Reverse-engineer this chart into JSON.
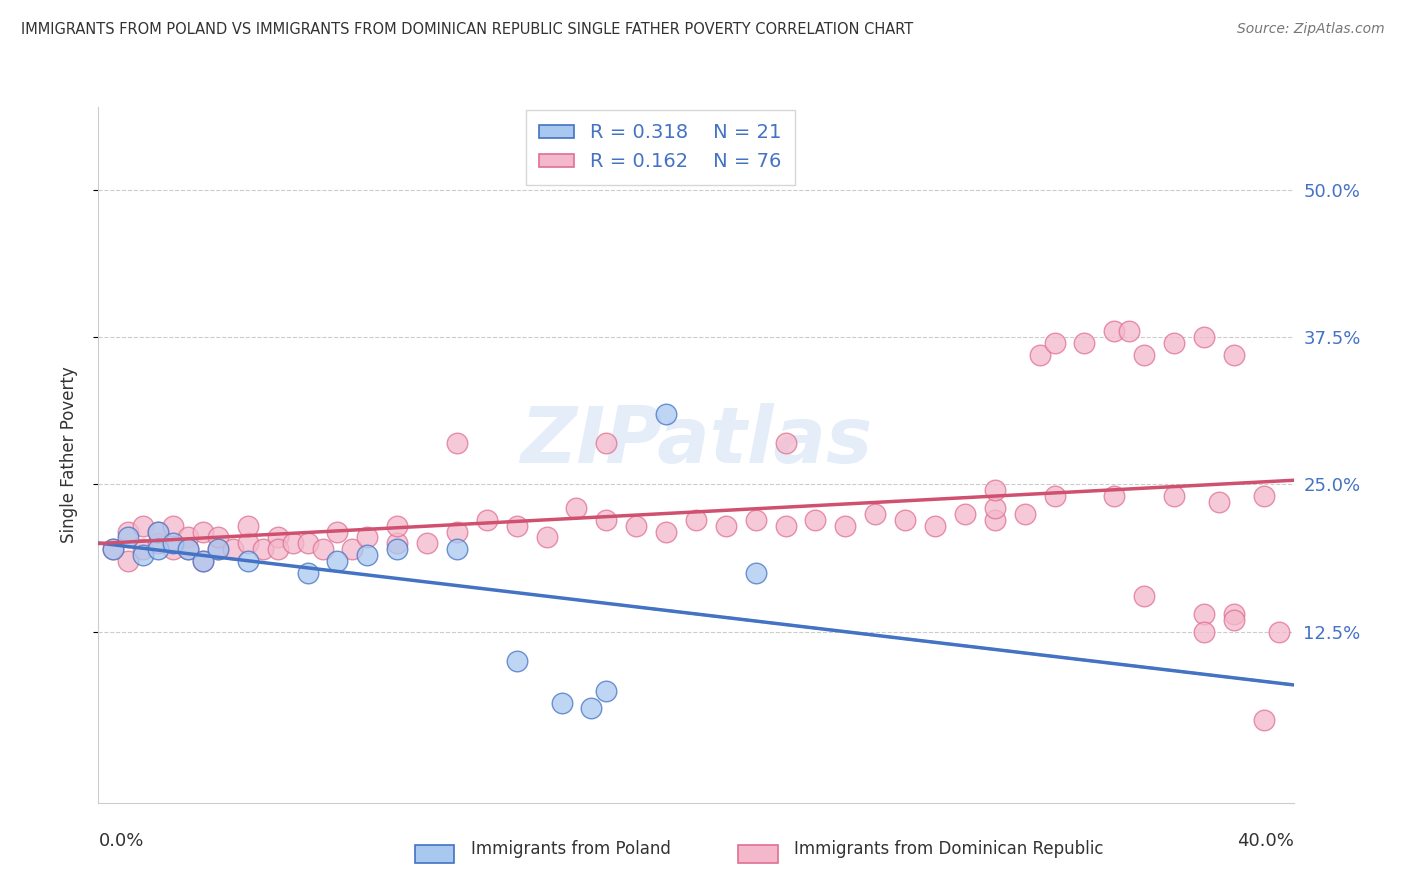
{
  "title": "IMMIGRANTS FROM POLAND VS IMMIGRANTS FROM DOMINICAN REPUBLIC SINGLE FATHER POVERTY CORRELATION CHART",
  "source": "Source: ZipAtlas.com",
  "ylabel": "Single Father Poverty",
  "x_range": [
    0.0,
    0.4
  ],
  "y_range": [
    -0.02,
    0.57
  ],
  "legend_r1": "R = 0.318",
  "legend_n1": "N = 21",
  "legend_r2": "R = 0.162",
  "legend_n2": "N = 76",
  "color_poland_fill": "#a8c8f0",
  "color_poland_edge": "#4472c4",
  "color_dominican_fill": "#f4b8cc",
  "color_dominican_edge": "#e07090",
  "color_line_poland": "#4472c4",
  "color_line_dominican": "#d05070",
  "color_dashed": "#aaaaaa",
  "watermark": "ZIPatlas",
  "poland_x": [
    0.005,
    0.01,
    0.015,
    0.02,
    0.02,
    0.025,
    0.03,
    0.035,
    0.04,
    0.05,
    0.07,
    0.08,
    0.09,
    0.1,
    0.12,
    0.14,
    0.155,
    0.165,
    0.17,
    0.19,
    0.22
  ],
  "poland_y": [
    0.195,
    0.205,
    0.19,
    0.21,
    0.195,
    0.2,
    0.195,
    0.185,
    0.195,
    0.185,
    0.175,
    0.185,
    0.19,
    0.195,
    0.195,
    0.1,
    0.065,
    0.06,
    0.075,
    0.31,
    0.175
  ],
  "dominican_x": [
    0.005,
    0.01,
    0.01,
    0.015,
    0.015,
    0.02,
    0.02,
    0.025,
    0.025,
    0.03,
    0.03,
    0.035,
    0.035,
    0.04,
    0.04,
    0.045,
    0.05,
    0.05,
    0.055,
    0.06,
    0.06,
    0.065,
    0.07,
    0.075,
    0.08,
    0.085,
    0.09,
    0.1,
    0.1,
    0.11,
    0.12,
    0.13,
    0.14,
    0.15,
    0.16,
    0.17,
    0.18,
    0.19,
    0.2,
    0.21,
    0.22,
    0.23,
    0.24,
    0.25,
    0.26,
    0.27,
    0.28,
    0.29,
    0.3,
    0.31,
    0.315,
    0.32,
    0.33,
    0.34,
    0.345,
    0.35,
    0.36,
    0.37,
    0.38,
    0.3,
    0.32,
    0.34,
    0.36,
    0.375,
    0.39,
    0.38,
    0.37,
    0.35,
    0.39,
    0.37,
    0.395,
    0.38,
    0.12,
    0.17,
    0.23,
    0.3
  ],
  "dominican_y": [
    0.195,
    0.185,
    0.21,
    0.195,
    0.215,
    0.2,
    0.21,
    0.195,
    0.215,
    0.205,
    0.195,
    0.185,
    0.21,
    0.195,
    0.205,
    0.195,
    0.2,
    0.215,
    0.195,
    0.205,
    0.195,
    0.2,
    0.2,
    0.195,
    0.21,
    0.195,
    0.205,
    0.2,
    0.215,
    0.2,
    0.21,
    0.22,
    0.215,
    0.205,
    0.23,
    0.22,
    0.215,
    0.21,
    0.22,
    0.215,
    0.22,
    0.215,
    0.22,
    0.215,
    0.225,
    0.22,
    0.215,
    0.225,
    0.22,
    0.225,
    0.36,
    0.37,
    0.37,
    0.38,
    0.38,
    0.36,
    0.37,
    0.375,
    0.36,
    0.23,
    0.24,
    0.24,
    0.24,
    0.235,
    0.24,
    0.14,
    0.14,
    0.155,
    0.05,
    0.125,
    0.125,
    0.135,
    0.285,
    0.285,
    0.285,
    0.245
  ]
}
